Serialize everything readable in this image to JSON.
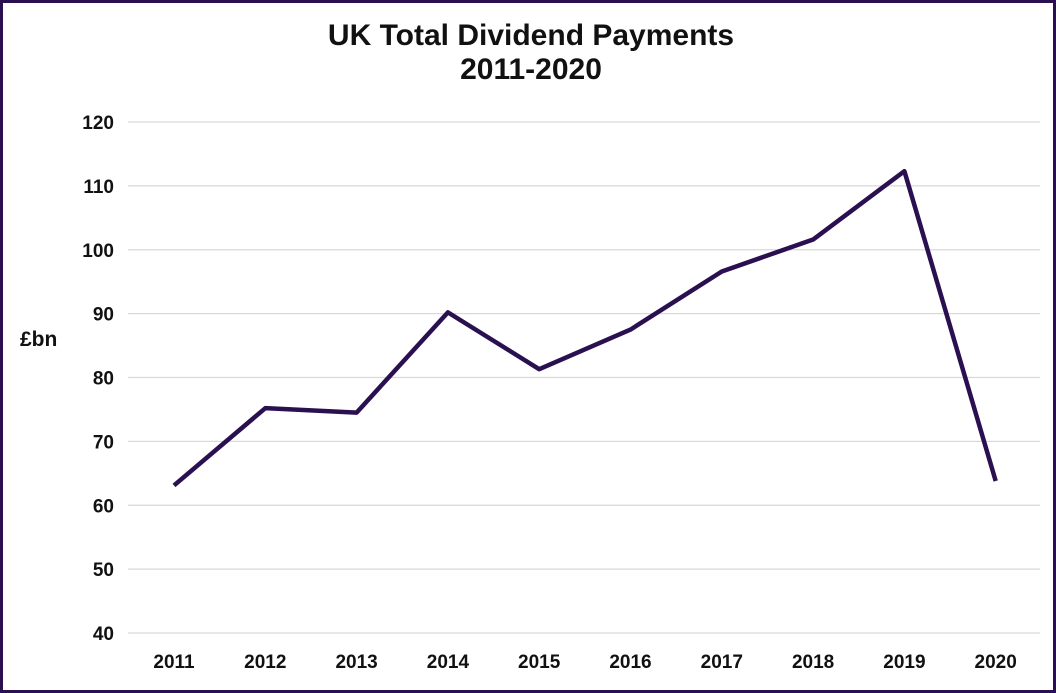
{
  "chart_data": {
    "type": "line",
    "title": "UK Total Dividend Payments",
    "subtitle": "2011-2020",
    "ylabel": "£bn",
    "xlabel": "",
    "categories": [
      "2011",
      "2012",
      "2013",
      "2014",
      "2015",
      "2016",
      "2017",
      "2018",
      "2019",
      "2020"
    ],
    "series": [
      {
        "values": [
          63.1,
          75.2,
          74.5,
          90.2,
          81.3,
          87.5,
          96.6,
          101.6,
          112.3,
          63.8
        ]
      }
    ],
    "ylim": [
      40,
      120
    ],
    "yticks": [
      40,
      50,
      60,
      70,
      80,
      90,
      100,
      110,
      120
    ],
    "grid": true,
    "line_color": "#2a1050",
    "grid_color": "#d9d9d9",
    "border_color": "#2a1050"
  }
}
